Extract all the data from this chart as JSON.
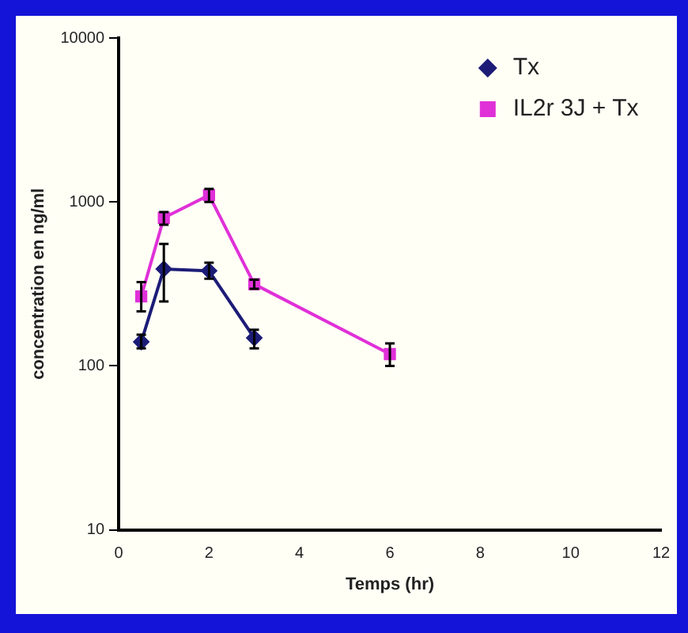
{
  "chart_data": {
    "type": "line",
    "xlabel": "Temps (hr)",
    "ylabel": "concentration en ng/ml",
    "log": "y",
    "xlim": [
      0,
      12
    ],
    "xticks": [
      0,
      2,
      4,
      6,
      8,
      10,
      12
    ],
    "ylim": [
      10,
      10000
    ],
    "yticks": [
      10,
      100,
      1000,
      10000
    ],
    "grid": false,
    "legend": "top right",
    "series": [
      {
        "name": "Tx",
        "color": "#1c1c78",
        "marker": "diamond",
        "x": [
          0.5,
          1,
          2,
          3
        ],
        "values": [
          140,
          390,
          380,
          148
        ],
        "errors": [
          [
            128,
            155
          ],
          [
            247,
            555
          ],
          [
            340,
            426
          ],
          [
            128,
            166
          ]
        ]
      },
      {
        "name": "IL2r 3J + Tx",
        "color": "#e030d8",
        "marker": "square",
        "x": [
          0.5,
          1,
          2,
          3,
          6
        ],
        "values": [
          265,
          800,
          1100,
          315,
          118
        ],
        "errors": [
          [
            215,
            324
          ],
          [
            727,
            867
          ],
          [
            1000,
            1200
          ],
          [
            295,
            335
          ],
          [
            100,
            137
          ]
        ]
      }
    ]
  }
}
